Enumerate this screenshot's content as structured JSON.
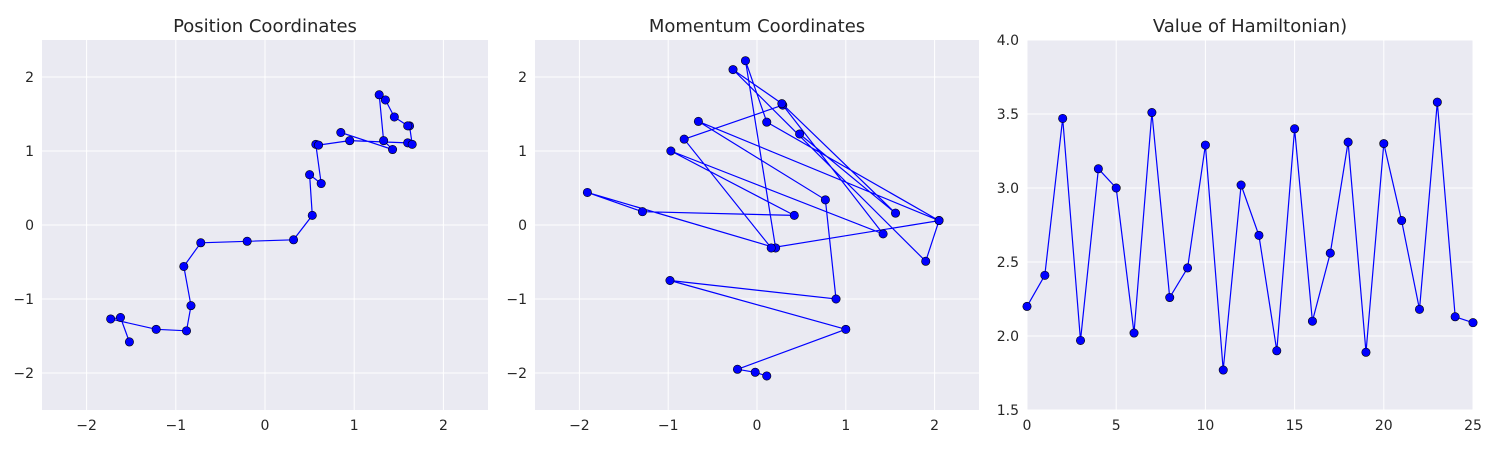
{
  "chart_data": [
    {
      "type": "line",
      "title": "Position Coordinates",
      "xlabel": "",
      "ylabel": "",
      "xlim": [
        -2.5,
        2.5
      ],
      "ylim": [
        -2.5,
        2.5
      ],
      "xticks": [
        -2,
        -1,
        0,
        1,
        2
      ],
      "yticks": [
        -2,
        -1,
        0,
        1,
        2
      ],
      "tick_labels_x": [
        "−2",
        "−1",
        "0",
        "1",
        "2"
      ],
      "tick_labels_y": [
        "−2",
        "−1",
        "0",
        "1",
        "2"
      ],
      "grid": true,
      "markers": true,
      "color": "#0000ff",
      "series": [
        {
          "x": [
            -1.52,
            -1.62,
            -1.73,
            -1.22,
            -0.88,
            -0.83,
            -0.91,
            -0.72,
            -0.2,
            0.32,
            0.53,
            0.5,
            0.63,
            0.57,
            0.6,
            0.95,
            1.6,
            1.65,
            1.62,
            1.6,
            1.45,
            1.35,
            1.28,
            1.33,
            1.43,
            0.85
          ],
          "y": [
            -1.58,
            -1.25,
            -1.27,
            -1.41,
            -1.43,
            -1.09,
            -0.56,
            -0.24,
            -0.22,
            -0.2,
            0.13,
            0.68,
            0.56,
            1.09,
            1.08,
            1.14,
            1.11,
            1.09,
            1.34,
            1.34,
            1.46,
            1.69,
            1.76,
            1.14,
            1.02,
            1.25
          ]
        }
      ]
    },
    {
      "type": "line",
      "title": "Momentum Coordinates",
      "xlabel": "",
      "ylabel": "",
      "xlim": [
        -2.5,
        2.5
      ],
      "ylim": [
        -2.5,
        2.5
      ],
      "xticks": [
        -2,
        -1,
        0,
        1,
        2
      ],
      "yticks": [
        -2,
        -1,
        0,
        1,
        2
      ],
      "tick_labels_x": [
        "−2",
        "−1",
        "0",
        "1",
        "2"
      ],
      "tick_labels_y": [
        "−2",
        "−1",
        "0",
        "1",
        "2"
      ],
      "grid": true,
      "markers": true,
      "color": "#0000ff",
      "series": [
        {
          "x": [
            0.11,
            -0.02,
            -0.22,
            1.0,
            -0.98,
            0.89,
            0.77,
            -0.66,
            2.05,
            0.11,
            -0.13,
            0.21,
            -1.91,
            -1.29,
            0.42,
            -0.97,
            1.42,
            0.29,
            -0.82,
            0.16,
            2.05,
            1.9,
            -0.27,
            0.28,
            1.56,
            0.48
          ],
          "y": [
            -2.04,
            -1.99,
            -1.95,
            -1.41,
            -0.75,
            -1.0,
            0.34,
            1.4,
            0.06,
            1.39,
            2.22,
            -0.31,
            0.44,
            0.18,
            0.13,
            1.0,
            -0.12,
            1.62,
            1.16,
            -0.31,
            0.06,
            -0.49,
            2.1,
            1.64,
            0.16,
            1.23
          ]
        }
      ]
    },
    {
      "type": "line",
      "title": "Value of Hamiltonian)",
      "xlabel": "",
      "ylabel": "",
      "xlim": [
        0,
        25
      ],
      "ylim": [
        1.5,
        4.0
      ],
      "xticks": [
        0,
        5,
        10,
        15,
        20,
        25
      ],
      "yticks": [
        1.5,
        2.0,
        2.5,
        3.0,
        3.5,
        4.0
      ],
      "tick_labels_x": [
        "0",
        "5",
        "10",
        "15",
        "20",
        "25"
      ],
      "tick_labels_y": [
        "1.5",
        "2.0",
        "2.5",
        "3.0",
        "3.5",
        "4.0"
      ],
      "grid": true,
      "markers": true,
      "color": "#0000ff",
      "series": [
        {
          "x": [
            0,
            1,
            2,
            3,
            4,
            5,
            6,
            7,
            8,
            9,
            10,
            11,
            12,
            13,
            14,
            15,
            16,
            17,
            18,
            19,
            20,
            21,
            22,
            23,
            24,
            25
          ],
          "y": [
            2.2,
            2.41,
            3.47,
            1.97,
            3.13,
            3.0,
            2.02,
            3.51,
            2.26,
            2.46,
            3.29,
            1.77,
            3.02,
            2.68,
            1.9,
            3.4,
            2.1,
            2.56,
            3.31,
            1.89,
            3.3,
            2.78,
            2.18,
            3.58,
            2.13,
            2.09
          ]
        }
      ]
    }
  ]
}
